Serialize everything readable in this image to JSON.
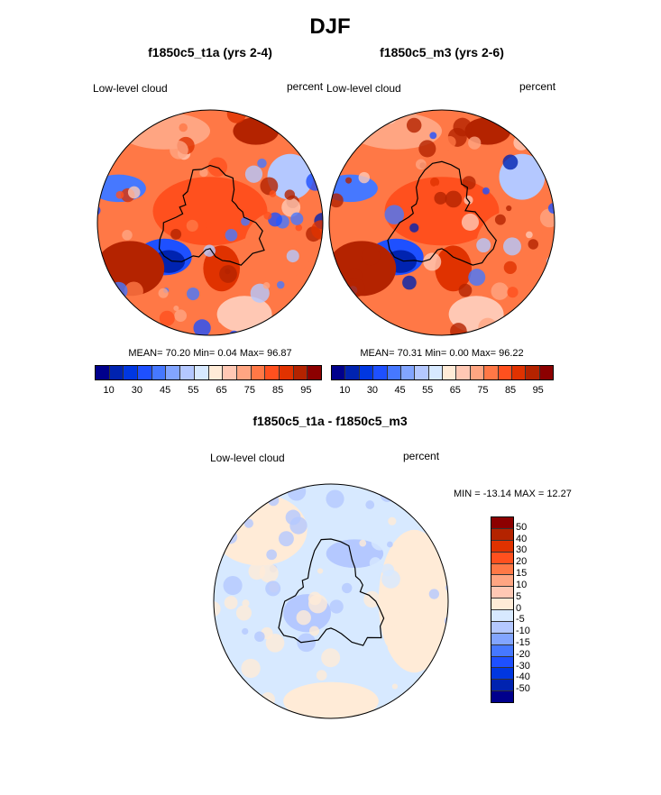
{
  "title": "DJF",
  "panels": [
    {
      "title": "f1850c5_t1a (yrs 2-4)",
      "variable": "Low-level cloud",
      "units": "percent",
      "stats": "MEAN=  70.20  Min=   0.04  Max=  96.87",
      "mean": 70.2,
      "min": 0.04,
      "max": 96.87
    },
    {
      "title": "f1850c5_m3 (yrs 2-6)",
      "variable": "Low-level cloud",
      "units": "percent",
      "stats": "MEAN=  70.31  Min=   0.00  Max=  96.22",
      "mean": 70.31,
      "min": 0.0,
      "max": 96.22
    }
  ],
  "diff": {
    "title": "f1850c5_t1a - f1850c5_m3",
    "variable": "Low-level cloud",
    "units": "percent",
    "stats": "MIN = -13.14 MAX =  12.27",
    "min": -13.14,
    "max": 12.27
  },
  "colorbar_labels": [
    "10",
    "30",
    "45",
    "55",
    "65",
    "75",
    "85",
    "95"
  ],
  "diff_colorbar_labels": [
    "50",
    "40",
    "30",
    "20",
    "15",
    "10",
    "5",
    "0",
    "-5",
    "-10",
    "-15",
    "-20",
    "-30",
    "-40",
    "-50"
  ],
  "colors": [
    "#00008c",
    "#0023b0",
    "#0037e1",
    "#1e50ff",
    "#4678ff",
    "#82a5ff",
    "#b4c8ff",
    "#d7e9ff",
    "#ffebd7",
    "#ffc8b4",
    "#ffa582",
    "#ff7846",
    "#ff501e",
    "#e03200",
    "#b42300",
    "#8c0000"
  ]
}
